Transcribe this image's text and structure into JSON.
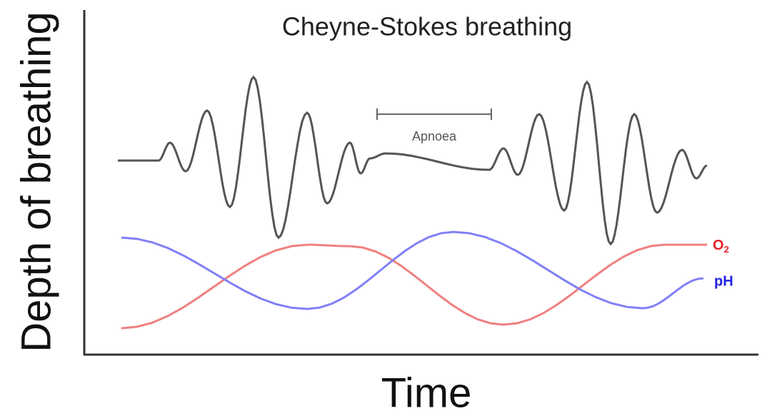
{
  "title": "Cheyne-Stokes breathing",
  "y_axis_label": "Depth of breathing",
  "x_axis_label": "Time",
  "annotation": "Apnoea",
  "o2_label": {
    "base": "O",
    "subscript": "2"
  },
  "ph_label": "pH"
}
